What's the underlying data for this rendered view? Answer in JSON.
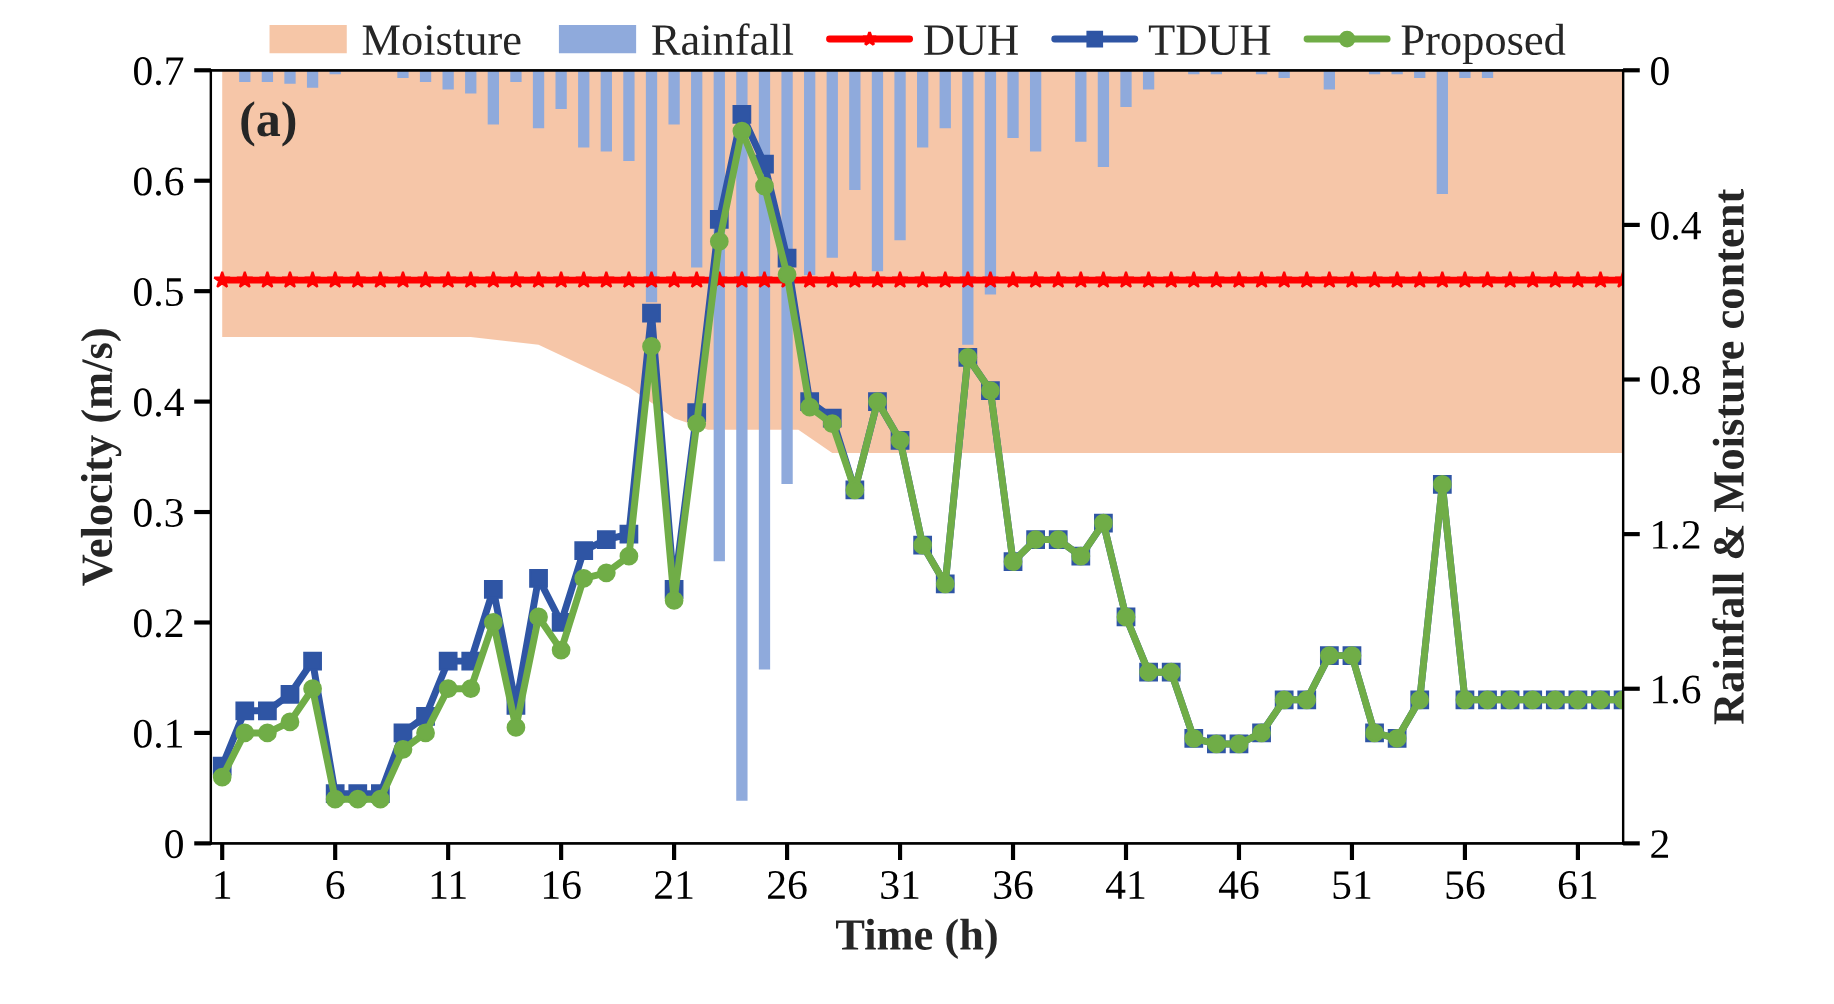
{
  "chart_data": {
    "type": "line",
    "xlabel": "Time (h)",
    "ylabel": "Velocity (m/s)",
    "y2label": "Rainfall & Moisture content",
    "annotations": [
      "(a)"
    ],
    "x": [
      1,
      2,
      3,
      4,
      5,
      6,
      7,
      8,
      9,
      10,
      11,
      12,
      13,
      14,
      15,
      16,
      17,
      18,
      19,
      20,
      21,
      22,
      23,
      24,
      25,
      26,
      27,
      28,
      29,
      30,
      31,
      32,
      33,
      34,
      35,
      36,
      37,
      38,
      39,
      40,
      41,
      42,
      43,
      44,
      45,
      46,
      47,
      48,
      49,
      50,
      51,
      52,
      53,
      54,
      55,
      56,
      57,
      58,
      59,
      60,
      61,
      62,
      63
    ],
    "xlim": [
      0.5,
      63
    ],
    "xticks": [
      1,
      6,
      11,
      16,
      21,
      26,
      31,
      36,
      41,
      46,
      51,
      56,
      61
    ],
    "ylim": [
      0,
      0.7
    ],
    "yticks": [
      0,
      0.1,
      0.2,
      0.3,
      0.4,
      0.5,
      0.6,
      0.7
    ],
    "y2lim": [
      2,
      0
    ],
    "y2ticks": [
      0,
      0.4,
      0.8,
      1.2,
      1.6,
      2
    ],
    "legend": "top",
    "grid": false,
    "line_style": "solid",
    "series": [
      {
        "name": "Moisture",
        "type": "area",
        "axis": "y2",
        "color": "#f4b892",
        "x": [
          1,
          12,
          15,
          19,
          21,
          22.5,
          26.5,
          28,
          63
        ],
        "values": [
          0.69,
          0.69,
          0.71,
          0.82,
          0.9,
          0.93,
          0.93,
          0.99,
          0.99
        ]
      },
      {
        "name": "Rainfall",
        "type": "bar",
        "axis": "y2",
        "color": "#8faadc",
        "values": [
          null,
          0.03,
          0.03,
          0.035,
          0.045,
          0.01,
          null,
          null,
          0.02,
          0.03,
          0.05,
          0.06,
          0.14,
          0.03,
          0.15,
          0.1,
          0.2,
          0.21,
          0.235,
          0.6,
          0.14,
          0.51,
          1.27,
          1.89,
          1.55,
          1.07,
          0.53,
          0.485,
          0.31,
          0.52,
          0.44,
          0.2,
          0.15,
          0.71,
          0.58,
          0.175,
          0.21,
          null,
          0.185,
          0.25,
          0.095,
          0.05,
          null,
          0.01,
          0.01,
          null,
          0.01,
          0.02,
          null,
          0.05,
          null,
          0.01,
          0.01,
          0.02,
          0.32,
          0.02,
          0.02,
          null,
          null,
          null,
          null,
          null,
          null
        ]
      },
      {
        "name": "DUH",
        "color": "#ff0000",
        "marker": "star",
        "values": [
          0.51,
          0.51,
          0.51,
          0.51,
          0.51,
          0.51,
          0.51,
          0.51,
          0.51,
          0.51,
          0.51,
          0.51,
          0.51,
          0.51,
          0.51,
          0.51,
          0.51,
          0.51,
          0.51,
          0.51,
          0.51,
          0.51,
          0.51,
          0.51,
          0.51,
          0.51,
          0.51,
          0.51,
          0.51,
          0.51,
          0.51,
          0.51,
          0.51,
          0.51,
          0.51,
          0.51,
          0.51,
          0.51,
          0.51,
          0.51,
          0.51,
          0.51,
          0.51,
          0.51,
          0.51,
          0.51,
          0.51,
          0.51,
          0.51,
          0.51,
          0.51,
          0.51,
          0.51,
          0.51,
          0.51,
          0.51,
          0.51,
          0.51,
          0.51,
          0.51,
          0.51,
          0.51,
          0.51
        ]
      },
      {
        "name": "TDUH",
        "color": "#2f55a4",
        "marker": "square",
        "values": [
          0.07,
          0.12,
          0.12,
          0.135,
          0.165,
          0.045,
          0.045,
          0.045,
          0.1,
          0.115,
          0.165,
          0.165,
          0.23,
          0.125,
          0.24,
          0.2,
          0.265,
          0.275,
          0.28,
          0.48,
          0.23,
          0.39,
          0.565,
          0.66,
          0.615,
          0.53,
          0.4,
          0.385,
          0.32,
          0.4,
          0.365,
          0.27,
          0.235,
          0.44,
          0.41,
          0.255,
          0.275,
          0.275,
          0.26,
          0.29,
          0.205,
          0.155,
          0.155,
          0.095,
          0.09,
          0.09,
          0.1,
          0.13,
          0.13,
          0.17,
          0.17,
          0.1,
          0.095,
          0.13,
          0.325,
          0.13,
          0.13,
          0.13,
          0.13,
          0.13,
          0.13,
          0.13,
          0.13
        ]
      },
      {
        "name": "Proposed",
        "color": "#70ad47",
        "marker": "circle",
        "values": [
          0.06,
          0.1,
          0.1,
          0.11,
          0.14,
          0.04,
          0.04,
          0.04,
          0.085,
          0.1,
          0.14,
          0.14,
          0.2,
          0.105,
          0.205,
          0.175,
          0.24,
          0.245,
          0.26,
          0.45,
          0.22,
          0.38,
          0.545,
          0.645,
          0.595,
          0.515,
          0.395,
          0.38,
          0.32,
          0.4,
          0.365,
          0.27,
          0.235,
          0.44,
          0.41,
          0.255,
          0.275,
          0.275,
          0.26,
          0.29,
          0.205,
          0.155,
          0.155,
          0.095,
          0.09,
          0.09,
          0.1,
          0.13,
          0.13,
          0.17,
          0.17,
          0.1,
          0.095,
          0.13,
          0.325,
          0.13,
          0.13,
          0.13,
          0.13,
          0.13,
          0.13,
          0.13,
          0.13
        ]
      }
    ]
  }
}
